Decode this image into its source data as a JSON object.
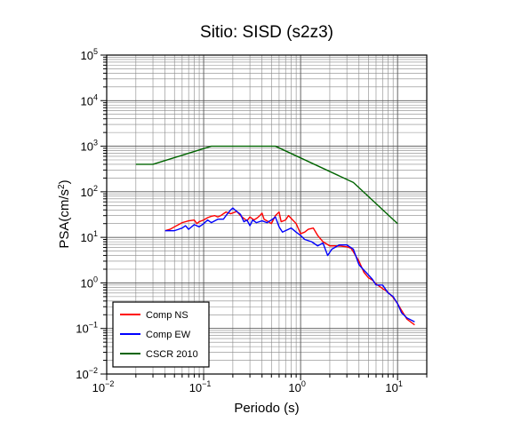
{
  "chart_data": {
    "type": "line",
    "title": "Sitio: SISD (s2z3)",
    "xlabel": "Periodo (s)",
    "ylabel": "PSA(cm/s²)",
    "ylabel_parts": {
      "base": "PSA(cm/s",
      "exp": "2",
      "tail": ")"
    },
    "x_scale": "log",
    "y_scale": "log",
    "xlim": [
      0.01,
      20
    ],
    "ylim": [
      0.01,
      100000
    ],
    "grid": true,
    "legend_position": "bottom-left",
    "x_ticks": [
      {
        "value": 0.01,
        "base": "10",
        "exp": "−2"
      },
      {
        "value": 0.1,
        "base": "10",
        "exp": "−1"
      },
      {
        "value": 1,
        "base": "10",
        "exp": "0"
      },
      {
        "value": 10,
        "base": "10",
        "exp": "1"
      }
    ],
    "y_ticks": [
      {
        "value": 0.01,
        "base": "10",
        "exp": "−2"
      },
      {
        "value": 0.1,
        "base": "10",
        "exp": "−1"
      },
      {
        "value": 1,
        "base": "10",
        "exp": "0"
      },
      {
        "value": 10,
        "base": "10",
        "exp": "1"
      },
      {
        "value": 100,
        "base": "10",
        "exp": "2"
      },
      {
        "value": 1000,
        "base": "10",
        "exp": "3"
      },
      {
        "value": 10000,
        "base": "10",
        "exp": "4"
      },
      {
        "value": 100000,
        "base": "10",
        "exp": "5"
      }
    ],
    "series": [
      {
        "name": "Comp NS",
        "color": "#ff0000",
        "points": [
          [
            0.04,
            14
          ],
          [
            0.045,
            15
          ],
          [
            0.05,
            17
          ],
          [
            0.055,
            19
          ],
          [
            0.06,
            21
          ],
          [
            0.07,
            23
          ],
          [
            0.08,
            24
          ],
          [
            0.085,
            20
          ],
          [
            0.09,
            22
          ],
          [
            0.1,
            24
          ],
          [
            0.11,
            27
          ],
          [
            0.12,
            29
          ],
          [
            0.13,
            30
          ],
          [
            0.14,
            28
          ],
          [
            0.15,
            30
          ],
          [
            0.17,
            36
          ],
          [
            0.19,
            33
          ],
          [
            0.22,
            37
          ],
          [
            0.24,
            30
          ],
          [
            0.26,
            26
          ],
          [
            0.28,
            23
          ],
          [
            0.3,
            28
          ],
          [
            0.33,
            24
          ],
          [
            0.36,
            27
          ],
          [
            0.38,
            30
          ],
          [
            0.4,
            34
          ],
          [
            0.42,
            25
          ],
          [
            0.45,
            23
          ],
          [
            0.5,
            20
          ],
          [
            0.55,
            30
          ],
          [
            0.6,
            36
          ],
          [
            0.63,
            22
          ],
          [
            0.7,
            24
          ],
          [
            0.75,
            30
          ],
          [
            0.8,
            26
          ],
          [
            0.9,
            20
          ],
          [
            1.0,
            12
          ],
          [
            1.1,
            13
          ],
          [
            1.2,
            15
          ],
          [
            1.35,
            16
          ],
          [
            1.5,
            11
          ],
          [
            1.7,
            8
          ],
          [
            2.0,
            6.5
          ],
          [
            2.3,
            6.5
          ],
          [
            2.6,
            6.4
          ],
          [
            3.0,
            6.2
          ],
          [
            3.3,
            5.8
          ],
          [
            3.5,
            4.8
          ],
          [
            4.0,
            3.0
          ],
          [
            4.5,
            1.7
          ],
          [
            5.0,
            1.3
          ],
          [
            5.5,
            1.15
          ],
          [
            6.0,
            0.95
          ],
          [
            7.0,
            0.75
          ],
          [
            8.0,
            0.62
          ],
          [
            9.0,
            0.48
          ],
          [
            10.0,
            0.35
          ],
          [
            11.0,
            0.25
          ],
          [
            12.5,
            0.16
          ],
          [
            15.0,
            0.12
          ]
        ]
      },
      {
        "name": "Comp EW",
        "color": "#0000ff",
        "points": [
          [
            0.04,
            14
          ],
          [
            0.045,
            14
          ],
          [
            0.05,
            14
          ],
          [
            0.055,
            15
          ],
          [
            0.06,
            16
          ],
          [
            0.065,
            18
          ],
          [
            0.07,
            15
          ],
          [
            0.08,
            19
          ],
          [
            0.09,
            17
          ],
          [
            0.1,
            20
          ],
          [
            0.11,
            24
          ],
          [
            0.12,
            21
          ],
          [
            0.13,
            23
          ],
          [
            0.14,
            25
          ],
          [
            0.16,
            25
          ],
          [
            0.17,
            30
          ],
          [
            0.19,
            40
          ],
          [
            0.2,
            44
          ],
          [
            0.21,
            40
          ],
          [
            0.24,
            32
          ],
          [
            0.26,
            22
          ],
          [
            0.28,
            24
          ],
          [
            0.3,
            18
          ],
          [
            0.32,
            24
          ],
          [
            0.35,
            21
          ],
          [
            0.4,
            23
          ],
          [
            0.45,
            21
          ],
          [
            0.5,
            24
          ],
          [
            0.55,
            28
          ],
          [
            0.6,
            17
          ],
          [
            0.65,
            13
          ],
          [
            0.7,
            14
          ],
          [
            0.8,
            16
          ],
          [
            0.9,
            13
          ],
          [
            1.0,
            11
          ],
          [
            1.1,
            9
          ],
          [
            1.3,
            8
          ],
          [
            1.5,
            6.5
          ],
          [
            1.7,
            7.5
          ],
          [
            1.9,
            4.0
          ],
          [
            2.1,
            5.5
          ],
          [
            2.5,
            6.8
          ],
          [
            3.0,
            6.8
          ],
          [
            3.5,
            5.5
          ],
          [
            4.0,
            2.5
          ],
          [
            4.5,
            1.9
          ],
          [
            5.0,
            1.5
          ],
          [
            5.5,
            1.2
          ],
          [
            6.0,
            0.9
          ],
          [
            7.0,
            0.9
          ],
          [
            8.0,
            0.6
          ],
          [
            9.0,
            0.5
          ],
          [
            10.0,
            0.35
          ],
          [
            11.0,
            0.22
          ],
          [
            12.5,
            0.17
          ],
          [
            15.0,
            0.14
          ]
        ]
      },
      {
        "name": "CSCR 2010",
        "color": "#006400",
        "points": [
          [
            0.02,
            400
          ],
          [
            0.03,
            400
          ],
          [
            0.12,
            1000
          ],
          [
            0.55,
            1000
          ],
          [
            3.5,
            160
          ],
          [
            10.0,
            20
          ]
        ]
      }
    ]
  }
}
